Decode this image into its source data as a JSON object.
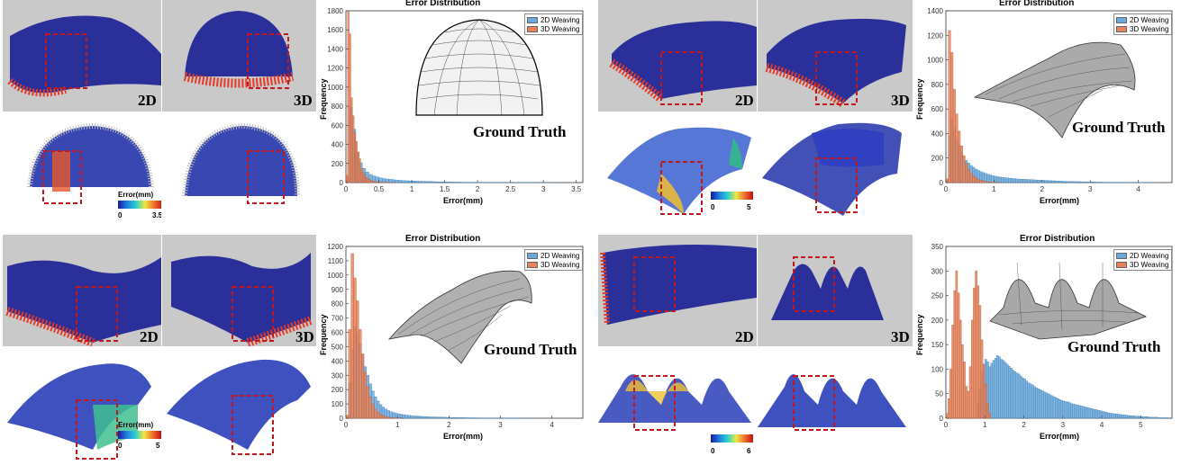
{
  "colors": {
    "weave2d": "#6aa9dc",
    "weave3d": "#e8825a",
    "fabric": "#2a2f9a",
    "thread": "#e23b2a",
    "photo_bg": "#c8c8c8",
    "dashed_box": "#c0181c"
  },
  "labels": {
    "tag2d": "2D",
    "tag3d": "3D",
    "ground_truth": "Ground Truth",
    "error_mm": "Error(mm)"
  },
  "colorbars": [
    {
      "min": "0",
      "max": "3.5"
    },
    {
      "min": "0",
      "max": "5"
    },
    {
      "min": "0",
      "max": "5"
    },
    {
      "min": "0",
      "max": "6"
    }
  ],
  "chart_data": [
    {
      "type": "bar",
      "title": "Error Distribution",
      "xlabel": "Error(mm)",
      "ylabel": "Frequency",
      "xlim": [
        0,
        3.6
      ],
      "ylim": [
        0,
        1800
      ],
      "xticks": [
        0,
        0.5,
        1,
        1.5,
        2,
        2.5,
        3,
        3.5
      ],
      "xtick_labels": [
        "0",
        "0.5",
        "1",
        "1.5",
        "2",
        "2.5",
        "3",
        "3.5"
      ],
      "yticks": [
        0,
        200,
        400,
        600,
        800,
        1000,
        1200,
        1400,
        1600,
        1800
      ],
      "legend": "top-right",
      "ground_truth_shape": "dome",
      "series": [
        {
          "name": "2D Weaving",
          "bin_width": 0.05,
          "x0": 0,
          "values": [
            60,
            790,
            560,
            320,
            210,
            150,
            110,
            85,
            70,
            60,
            50,
            42,
            38,
            34,
            30,
            27,
            24,
            22,
            20,
            18,
            17,
            15,
            14,
            13,
            12,
            11,
            10,
            9,
            8,
            8,
            7,
            6,
            6,
            5,
            5,
            4,
            4,
            3,
            3,
            3,
            3,
            2,
            2,
            2,
            2,
            2,
            2,
            1,
            1,
            1,
            1,
            1,
            1,
            1,
            1,
            1,
            1,
            1,
            1,
            1,
            1,
            1,
            1,
            0,
            0,
            1,
            0,
            0,
            1,
            0
          ]
        },
        {
          "name": "3D Weaving",
          "bin_width": 0.025,
          "x0": 0,
          "values": [
            80,
            1790,
            1560,
            890,
            700,
            520,
            430,
            320,
            250,
            150,
            110,
            80,
            55,
            40,
            30,
            22,
            16,
            12,
            9,
            7,
            5,
            4,
            3,
            2,
            2,
            1,
            1,
            1,
            1,
            0
          ]
        }
      ]
    },
    {
      "type": "bar",
      "title": "Error Distribution",
      "xlabel": "Error(mm)",
      "ylabel": "Frequency",
      "xlim": [
        0,
        4.7
      ],
      "ylim": [
        0,
        1400
      ],
      "xticks": [
        0,
        1,
        2,
        3,
        4
      ],
      "xtick_labels": [
        "0",
        "1",
        "2",
        "3",
        "4"
      ],
      "yticks": [
        0,
        200,
        400,
        600,
        800,
        1000,
        1200,
        1400
      ],
      "legend": "top-right",
      "ground_truth_shape": "saddle",
      "series": [
        {
          "name": "2D Weaving",
          "bin_width": 0.05,
          "x0": 0,
          "values": [
            20,
            380,
            520,
            440,
            360,
            300,
            250,
            210,
            180,
            160,
            140,
            125,
            110,
            100,
            90,
            82,
            75,
            68,
            62,
            57,
            52,
            48,
            45,
            42,
            40,
            38,
            36,
            34,
            32,
            30,
            29,
            28,
            27,
            26,
            25,
            24,
            23,
            22,
            21,
            20,
            19,
            18,
            17,
            16,
            15,
            14,
            13,
            12,
            11,
            10,
            10,
            9,
            9,
            8,
            8,
            7,
            7,
            6,
            6,
            5,
            5,
            5,
            4,
            4,
            4,
            3,
            3,
            3,
            3,
            2,
            2,
            2,
            2,
            2,
            2,
            1,
            1,
            1,
            1,
            1,
            1,
            1,
            1,
            1,
            1,
            1,
            1,
            0,
            1,
            0
          ]
        },
        {
          "name": "3D Weaving",
          "bin_width": 0.05,
          "x0": 0,
          "values": [
            30,
            1240,
            1060,
            760,
            560,
            420,
            300,
            220,
            160,
            110,
            80,
            55,
            40,
            28,
            20,
            15,
            10,
            7,
            5,
            3,
            2,
            1,
            1,
            0
          ]
        }
      ]
    },
    {
      "type": "bar",
      "title": "Error Distribution",
      "xlabel": "Error(mm)",
      "ylabel": "Frequency",
      "xlim": [
        0,
        4.6
      ],
      "ylim": [
        0,
        1200
      ],
      "xticks": [
        0,
        1,
        2,
        3,
        4
      ],
      "xtick_labels": [
        "0",
        "1",
        "2",
        "3",
        "4"
      ],
      "yticks": [
        0,
        100,
        200,
        300,
        400,
        500,
        600,
        700,
        800,
        900,
        1000,
        1100,
        1200
      ],
      "legend": "top-right",
      "ground_truth_shape": "arch",
      "series": [
        {
          "name": "2D Weaving",
          "bin_width": 0.05,
          "x0": 0,
          "values": [
            10,
            250,
            480,
            640,
            600,
            520,
            440,
            360,
            300,
            240,
            190,
            150,
            120,
            95,
            78,
            64,
            54,
            46,
            40,
            35,
            31,
            28,
            25,
            22,
            20,
            18,
            16,
            15,
            14,
            13,
            12,
            11,
            10,
            9,
            9,
            8,
            8,
            7,
            7,
            6,
            6,
            5,
            5,
            5,
            4,
            4,
            4,
            3,
            3,
            3,
            3,
            2,
            2,
            2,
            2,
            2,
            2,
            1,
            1,
            1,
            1,
            1,
            1,
            1,
            1,
            1,
            1,
            1,
            0,
            0,
            1,
            0,
            0,
            0,
            0,
            0,
            0,
            1,
            0,
            0,
            0,
            0,
            0,
            1,
            0
          ]
        },
        {
          "name": "3D Weaving",
          "bin_width": 0.05,
          "x0": 0,
          "values": [
            20,
            620,
            1150,
            980,
            820,
            620,
            450,
            320,
            220,
            150,
            100,
            65,
            42,
            28,
            18,
            12,
            8,
            5,
            3,
            2,
            1,
            1,
            0
          ]
        }
      ]
    },
    {
      "type": "bar",
      "title": "Error Distribution",
      "xlabel": "Error(mm)",
      "ylabel": "Frequency",
      "xlim": [
        0,
        5.8
      ],
      "ylim": [
        0,
        350
      ],
      "xticks": [
        0,
        1,
        2,
        3,
        4,
        5
      ],
      "xtick_labels": [
        "0",
        "1",
        "2",
        "3",
        "4",
        "5"
      ],
      "yticks": [
        0,
        50,
        100,
        150,
        200,
        250,
        300,
        350
      ],
      "legend": "top-right",
      "ground_truth_shape": "triple-bump",
      "series": [
        {
          "name": "2D Weaving",
          "bin_width": 0.05,
          "x0": 0.8,
          "values": [
            30,
            60,
            95,
            110,
            120,
            115,
            105,
            112,
            118,
            122,
            128,
            125,
            120,
            118,
            114,
            110,
            106,
            102,
            98,
            95,
            92,
            90,
            86,
            82,
            80,
            76,
            72,
            70,
            68,
            65,
            62,
            60,
            58,
            56,
            54,
            52,
            50,
            48,
            46,
            44,
            42,
            40,
            38,
            36,
            35,
            34,
            33,
            32,
            30,
            29,
            28,
            27,
            26,
            25,
            24,
            23,
            22,
            21,
            20,
            19,
            18,
            17,
            16,
            15,
            14,
            13,
            12,
            11,
            10,
            10,
            9,
            9,
            8,
            8,
            7,
            7,
            6,
            6,
            5,
            5,
            5,
            4,
            4,
            4,
            3,
            3,
            3,
            3,
            2,
            2,
            2,
            2,
            2,
            1,
            1,
            1,
            1,
            1,
            0,
            1
          ]
        },
        {
          "name": "3D Weaving",
          "bin_width": 0.05,
          "x0": 0,
          "values": [
            10,
            40,
            100,
            190,
            260,
            300,
            255,
            200,
            150,
            115,
            65,
            55,
            105,
            200,
            265,
            300,
            270,
            230,
            160,
            110,
            70,
            30,
            10
          ]
        }
      ]
    }
  ]
}
